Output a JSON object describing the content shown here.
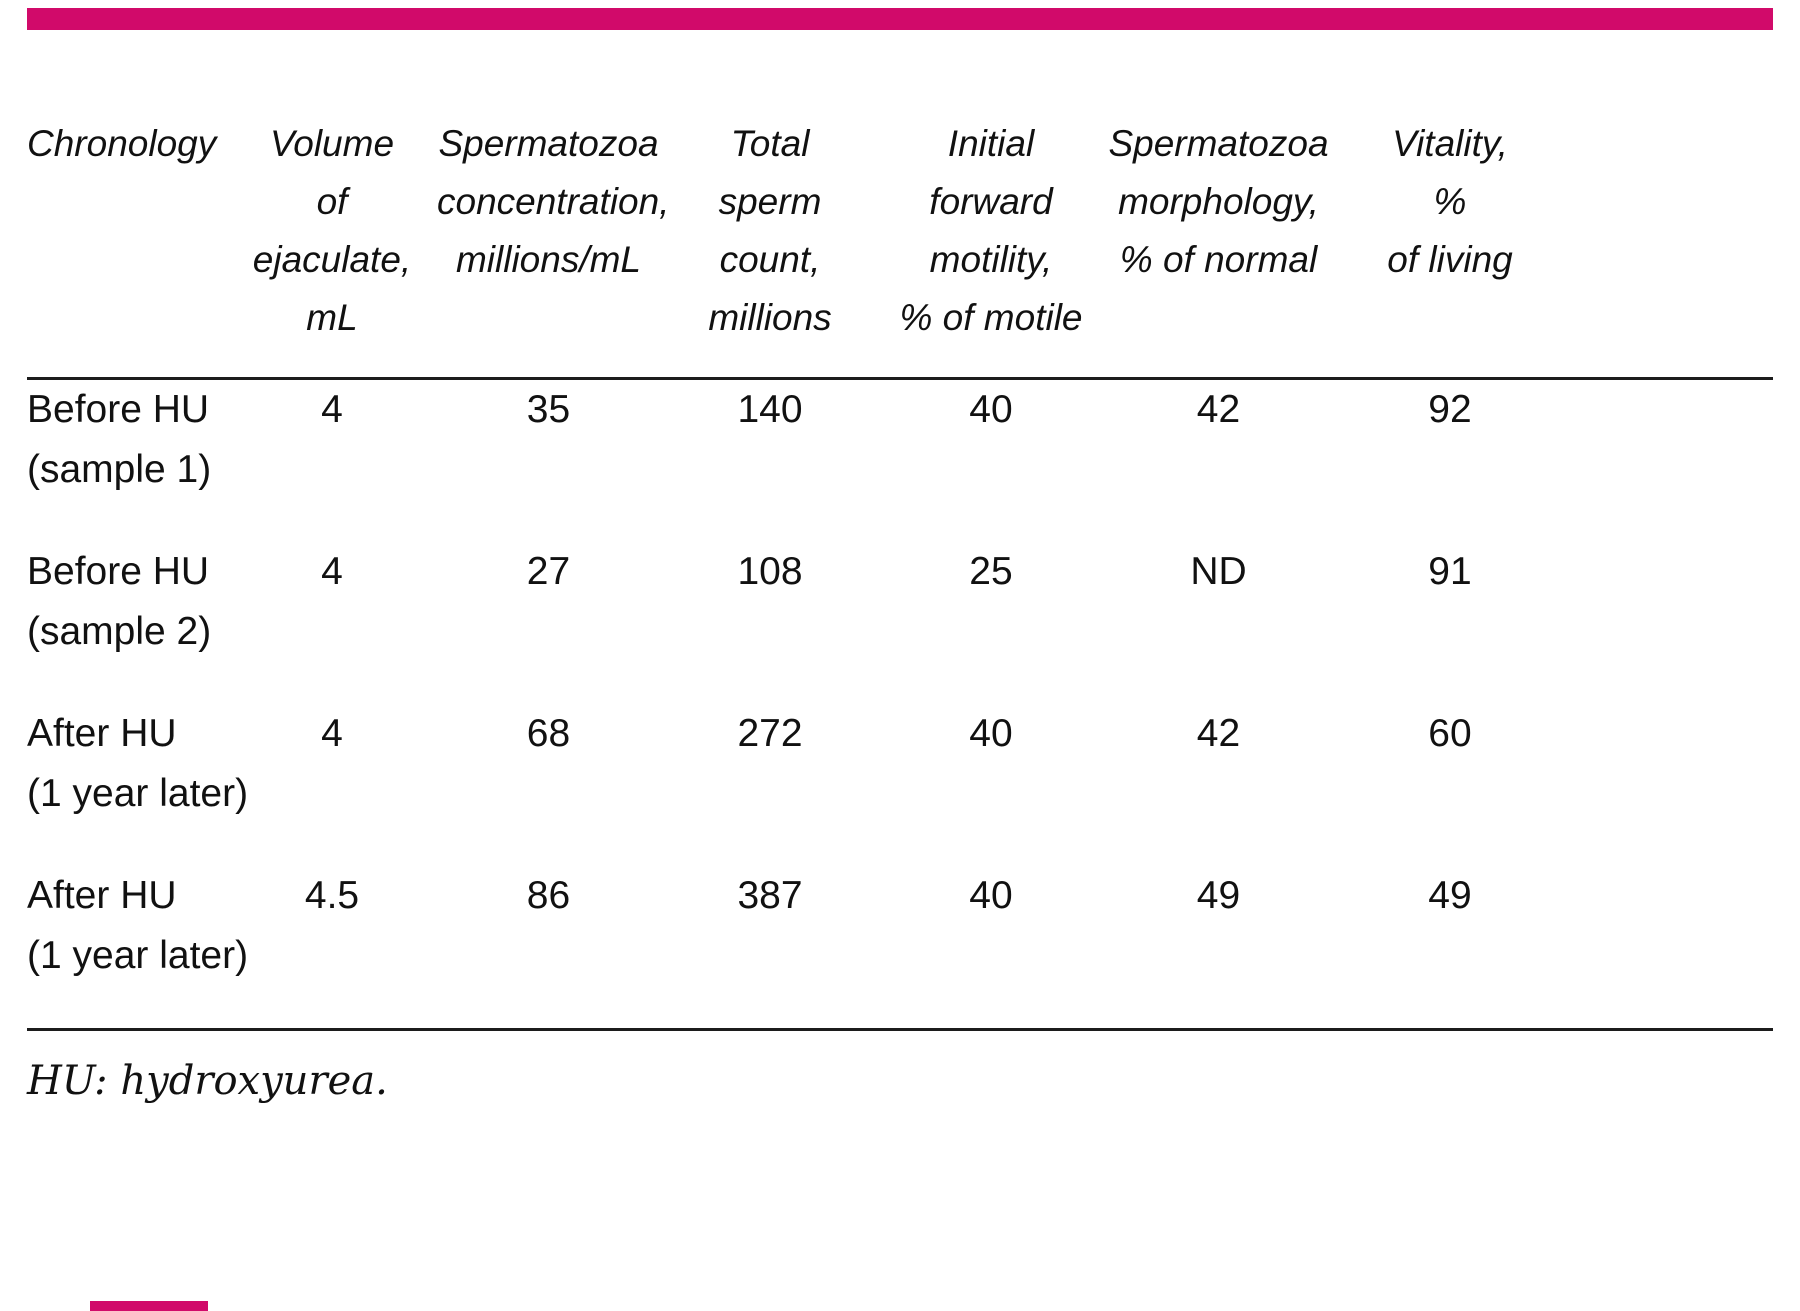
{
  "accent_color": "#d10a6a",
  "accent_style": "background:#d10a6a",
  "table": {
    "headers": [
      "Chronology",
      "Volume\nof\nejaculate,\nmL",
      "Spermatozoa\nconcentration,\nmillions/mL",
      "Total\nsperm\ncount,\nmillions",
      "Initial\nforward\nmotility,\n% of motile",
      "Spermatozoa\nmorphology,\n% of normal",
      "Vitality,\n%\nof living"
    ],
    "rows": [
      {
        "label": "Before HU\n(sample 1)",
        "values": [
          "4",
          "35",
          "140",
          "40",
          "42",
          "92"
        ]
      },
      {
        "label": "Before HU\n(sample 2)",
        "values": [
          "4",
          "27",
          "108",
          "25",
          "ND",
          "91"
        ]
      },
      {
        "label": "After HU\n(1 year later)",
        "values": [
          "4",
          "68",
          "272",
          "40",
          "42",
          "60"
        ]
      },
      {
        "label": "After HU\n(1 year later)",
        "values": [
          "4.5",
          "86",
          "387",
          "40",
          "49",
          "49"
        ]
      }
    ],
    "footnote": "HU: hydroxyurea."
  }
}
